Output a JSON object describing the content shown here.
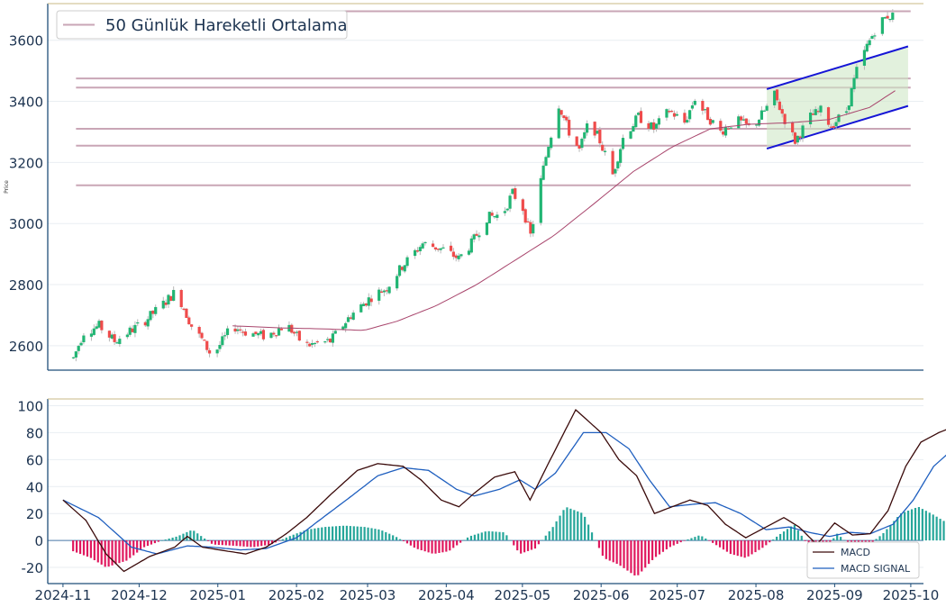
{
  "chart_data": [
    {
      "type": "candlestick",
      "ylabel": "Price",
      "ylim": [
        2520,
        3720
      ],
      "yticks": [
        2600,
        2800,
        3000,
        3200,
        3400,
        3600
      ],
      "xlim": [
        "2024-10-25",
        "2025-10-01"
      ],
      "legend": {
        "position": "top-left",
        "entries": [
          "50 Günlük Hareketli Ortalama"
        ]
      },
      "ohlc_keypoints": [
        [
          "2024-11-04",
          2560
        ],
        [
          "2024-11-08",
          2645
        ],
        [
          "2024-11-14",
          2665
        ],
        [
          "2024-11-20",
          2615
        ],
        [
          "2024-12-01",
          2675
        ],
        [
          "2024-12-10",
          2745
        ],
        [
          "2024-12-14",
          2780
        ],
        [
          "2024-12-20",
          2665
        ],
        [
          "2024-12-24",
          2620
        ],
        [
          "2024-12-28",
          2565
        ],
        [
          "2025-01-05",
          2665
        ],
        [
          "2025-01-10",
          2645
        ],
        [
          "2025-01-18",
          2630
        ],
        [
          "2025-01-26",
          2670
        ],
        [
          "2025-02-02",
          2600
        ],
        [
          "2025-02-12",
          2615
        ],
        [
          "2025-02-20",
          2700
        ],
        [
          "2025-02-28",
          2760
        ],
        [
          "2025-03-06",
          2790
        ],
        [
          "2025-03-12",
          2860
        ],
        [
          "2025-03-20",
          2935
        ],
        [
          "2025-03-28",
          2915
        ],
        [
          "2025-04-03",
          2885
        ],
        [
          "2025-04-08",
          2935
        ],
        [
          "2025-04-14",
          3020
        ],
        [
          "2025-04-20",
          3030
        ],
        [
          "2025-04-24",
          3100
        ],
        [
          "2025-04-28",
          3050
        ],
        [
          "2025-05-01",
          2960
        ],
        [
          "2025-05-05",
          3140
        ],
        [
          "2025-05-08",
          3260
        ],
        [
          "2025-05-12",
          3390
        ],
        [
          "2025-05-16",
          3300
        ],
        [
          "2025-05-20",
          3240
        ],
        [
          "2025-05-24",
          3340
        ],
        [
          "2025-05-28",
          3270
        ],
        [
          "2025-06-02",
          3160
        ],
        [
          "2025-06-06",
          3280
        ],
        [
          "2025-06-12",
          3350
        ],
        [
          "2025-06-18",
          3310
        ],
        [
          "2025-06-24",
          3370
        ],
        [
          "2025-06-30",
          3330
        ],
        [
          "2025-07-04",
          3410
        ],
        [
          "2025-07-08",
          3360
        ],
        [
          "2025-07-14",
          3300
        ],
        [
          "2025-07-20",
          3340
        ],
        [
          "2025-07-26",
          3310
        ],
        [
          "2025-08-01",
          3380
        ],
        [
          "2025-08-04",
          3420
        ],
        [
          "2025-08-08",
          3340
        ],
        [
          "2025-08-12",
          3270
        ],
        [
          "2025-08-18",
          3350
        ],
        [
          "2025-08-22",
          3370
        ],
        [
          "2025-08-26",
          3320
        ],
        [
          "2025-09-01",
          3370
        ],
        [
          "2025-09-05",
          3500
        ],
        [
          "2025-09-09",
          3580
        ],
        [
          "2025-09-13",
          3650
        ],
        [
          "2025-09-17",
          3680
        ],
        [
          "2025-09-20",
          3680
        ]
      ],
      "moving_average_50_keypoints": [
        [
          "2025-01-05",
          2665
        ],
        [
          "2025-01-25",
          2658
        ],
        [
          "2025-02-10",
          2655
        ],
        [
          "2025-02-25",
          2650
        ],
        [
          "2025-03-10",
          2680
        ],
        [
          "2025-03-25",
          2730
        ],
        [
          "2025-04-10",
          2800
        ],
        [
          "2025-04-25",
          2880
        ],
        [
          "2025-05-10",
          2960
        ],
        [
          "2025-05-25",
          3060
        ],
        [
          "2025-06-10",
          3170
        ],
        [
          "2025-06-25",
          3250
        ],
        [
          "2025-07-10",
          3310
        ],
        [
          "2025-07-25",
          3325
        ],
        [
          "2025-08-10",
          3330
        ],
        [
          "2025-08-25",
          3340
        ],
        [
          "2025-09-10",
          3380
        ],
        [
          "2025-09-20",
          3435
        ]
      ],
      "horizontal_levels": [
        3125,
        3255,
        3310,
        3445,
        3475,
        3695
      ],
      "trend_channel": {
        "upper": [
          [
            "2025-08-01",
            3440
          ],
          [
            "2025-09-25",
            3580
          ]
        ],
        "lower": [
          [
            "2025-08-01",
            3245
          ],
          [
            "2025-09-25",
            3385
          ]
        ]
      }
    },
    {
      "type": "macd",
      "ylim": [
        -32,
        105
      ],
      "yticks": [
        -20,
        0,
        20,
        40,
        60,
        80,
        100
      ],
      "xticks": [
        "2024-11",
        "2024-12",
        "2025-01",
        "2025-02",
        "2025-03",
        "2025-04",
        "2025-05",
        "2025-06",
        "2025-07",
        "2025-08",
        "2025-09",
        "2025-10"
      ],
      "legend": {
        "position": "bottom-right",
        "entries": [
          "MACD",
          "MACD SIGNAL"
        ]
      },
      "macd_keypoints": [
        [
          "2024-11-01",
          30
        ],
        [
          "2024-11-10",
          15
        ],
        [
          "2024-11-18",
          -10
        ],
        [
          "2024-11-25",
          -23
        ],
        [
          "2024-12-05",
          -12
        ],
        [
          "2024-12-15",
          -5
        ],
        [
          "2024-12-20",
          3
        ],
        [
          "2024-12-26",
          -5
        ],
        [
          "2025-01-05",
          -8
        ],
        [
          "2025-01-12",
          -10
        ],
        [
          "2025-01-20",
          -5
        ],
        [
          "2025-01-28",
          5
        ],
        [
          "2025-02-05",
          17
        ],
        [
          "2025-02-15",
          35
        ],
        [
          "2025-02-25",
          52
        ],
        [
          "2025-03-05",
          57
        ],
        [
          "2025-03-15",
          55
        ],
        [
          "2025-03-22",
          45
        ],
        [
          "2025-03-30",
          30
        ],
        [
          "2025-04-06",
          25
        ],
        [
          "2025-04-12",
          35
        ],
        [
          "2025-04-20",
          47
        ],
        [
          "2025-04-28",
          51
        ],
        [
          "2025-05-04",
          30
        ],
        [
          "2025-05-12",
          60
        ],
        [
          "2025-05-22",
          97
        ],
        [
          "2025-06-01",
          80
        ],
        [
          "2025-06-08",
          60
        ],
        [
          "2025-06-15",
          48
        ],
        [
          "2025-06-22",
          20
        ],
        [
          "2025-06-29",
          25
        ],
        [
          "2025-07-06",
          30
        ],
        [
          "2025-07-13",
          26
        ],
        [
          "2025-07-20",
          12
        ],
        [
          "2025-07-28",
          2
        ],
        [
          "2025-08-05",
          10
        ],
        [
          "2025-08-12",
          17
        ],
        [
          "2025-08-18",
          10
        ],
        [
          "2025-08-25",
          -3
        ],
        [
          "2025-09-01",
          13
        ],
        [
          "2025-09-08",
          4
        ],
        [
          "2025-09-15",
          5
        ],
        [
          "2025-09-22",
          22
        ],
        [
          "2025-09-29",
          55
        ],
        [
          "2025-10-05",
          73
        ],
        [
          "2025-10-12",
          80
        ],
        [
          "2025-10-16",
          83
        ],
        [
          "2025-10-19",
          81
        ]
      ],
      "signal_keypoints": [
        [
          "2024-11-01",
          30
        ],
        [
          "2024-11-15",
          17
        ],
        [
          "2024-11-28",
          -5
        ],
        [
          "2024-12-08",
          -10
        ],
        [
          "2024-12-20",
          -4
        ],
        [
          "2024-12-30",
          -5
        ],
        [
          "2025-01-10",
          -7
        ],
        [
          "2025-01-20",
          -6
        ],
        [
          "2025-02-01",
          2
        ],
        [
          "2025-02-10",
          15
        ],
        [
          "2025-02-22",
          32
        ],
        [
          "2025-03-05",
          48
        ],
        [
          "2025-03-15",
          54
        ],
        [
          "2025-03-25",
          52
        ],
        [
          "2025-04-05",
          38
        ],
        [
          "2025-04-12",
          33
        ],
        [
          "2025-04-22",
          38
        ],
        [
          "2025-04-30",
          45
        ],
        [
          "2025-05-06",
          38
        ],
        [
          "2025-05-14",
          50
        ],
        [
          "2025-05-25",
          80
        ],
        [
          "2025-06-03",
          80
        ],
        [
          "2025-06-12",
          68
        ],
        [
          "2025-06-20",
          45
        ],
        [
          "2025-06-28",
          25
        ],
        [
          "2025-07-08",
          27
        ],
        [
          "2025-07-16",
          28
        ],
        [
          "2025-07-26",
          20
        ],
        [
          "2025-08-05",
          8
        ],
        [
          "2025-08-14",
          10
        ],
        [
          "2025-08-22",
          6
        ],
        [
          "2025-08-30",
          3
        ],
        [
          "2025-09-07",
          6
        ],
        [
          "2025-09-15",
          5
        ],
        [
          "2025-09-24",
          12
        ],
        [
          "2025-10-02",
          30
        ],
        [
          "2025-10-10",
          55
        ],
        [
          "2025-10-16",
          65
        ],
        [
          "2025-10-19",
          72
        ]
      ],
      "histogram_keypoints": [
        [
          "2024-11-05",
          -8
        ],
        [
          "2024-11-12",
          -13
        ],
        [
          "2024-11-18",
          -20
        ],
        [
          "2024-11-26",
          -15
        ],
        [
          "2024-12-03",
          -5
        ],
        [
          "2024-12-10",
          0
        ],
        [
          "2024-12-16",
          3
        ],
        [
          "2024-12-22",
          8
        ],
        [
          "2024-12-30",
          -3
        ],
        [
          "2025-01-08",
          -4
        ],
        [
          "2025-01-15",
          -5
        ],
        [
          "2025-01-22",
          -3
        ],
        [
          "2025-01-29",
          3
        ],
        [
          "2025-02-05",
          8
        ],
        [
          "2025-02-12",
          10
        ],
        [
          "2025-02-20",
          11
        ],
        [
          "2025-02-28",
          10
        ],
        [
          "2025-03-06",
          8
        ],
        [
          "2025-03-12",
          3
        ],
        [
          "2025-03-20",
          -6
        ],
        [
          "2025-03-27",
          -10
        ],
        [
          "2025-04-02",
          -8
        ],
        [
          "2025-04-10",
          3
        ],
        [
          "2025-04-17",
          7
        ],
        [
          "2025-04-24",
          6
        ],
        [
          "2025-04-30",
          -10
        ],
        [
          "2025-05-06",
          -6
        ],
        [
          "2025-05-13",
          10
        ],
        [
          "2025-05-18",
          25
        ],
        [
          "2025-05-25",
          20
        ],
        [
          "2025-06-02",
          -13
        ],
        [
          "2025-06-08",
          -18
        ],
        [
          "2025-06-15",
          -27
        ],
        [
          "2025-06-22",
          -13
        ],
        [
          "2025-06-28",
          -5
        ],
        [
          "2025-07-04",
          0
        ],
        [
          "2025-07-10",
          4
        ],
        [
          "2025-07-16",
          -3
        ],
        [
          "2025-07-22",
          -10
        ],
        [
          "2025-07-28",
          -13
        ],
        [
          "2025-08-04",
          -5
        ],
        [
          "2025-08-10",
          4
        ],
        [
          "2025-08-16",
          12
        ],
        [
          "2025-08-22",
          -5
        ],
        [
          "2025-08-28",
          -7
        ],
        [
          "2025-09-02",
          5
        ],
        [
          "2025-09-08",
          -5
        ],
        [
          "2025-09-14",
          -4
        ],
        [
          "2025-09-20",
          5
        ],
        [
          "2025-09-27",
          20
        ],
        [
          "2025-10-04",
          25
        ],
        [
          "2025-10-10",
          19
        ],
        [
          "2025-10-18",
          10
        ]
      ]
    }
  ]
}
